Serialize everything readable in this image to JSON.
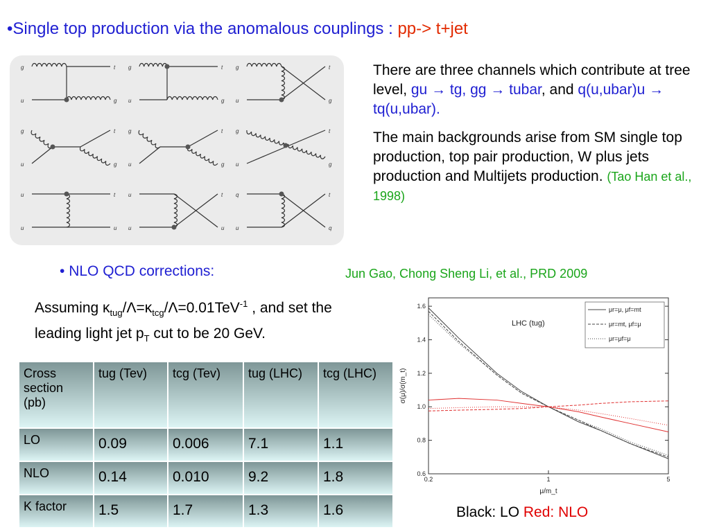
{
  "title": {
    "bullet": "•",
    "main": "Single top production via the anomalous couplings : ",
    "process": "pp-> t+jet"
  },
  "feynman": {
    "rows": [
      [
        {
          "tl": "g",
          "tr": "t",
          "bl": "u",
          "br": "g"
        },
        {
          "tl": "g",
          "tr": "t",
          "bl": "u",
          "br": "g"
        },
        {
          "tl": "g",
          "tr": "t",
          "bl": "u",
          "br": "g"
        }
      ],
      [
        {
          "tl": "g",
          "tr": "t",
          "bl": "u",
          "br": "g"
        },
        {
          "tl": "g",
          "tr": "t",
          "bl": "u",
          "br": "g"
        },
        {
          "tl": "g",
          "tr": "t",
          "bl": "u",
          "br": "g"
        }
      ],
      [
        {
          "tl": "u",
          "tr": "t",
          "bl": "u",
          "br": "u"
        },
        {
          "tl": "u",
          "tr": "t",
          "bl": "u",
          "br": "u"
        },
        {
          "tl": "q",
          "tr": "t",
          "bl": "u",
          "br": "q"
        }
      ]
    ]
  },
  "intro": {
    "p1_a": "There are three channels which contribute at tree level, ",
    "gu": "gu",
    "arrow": "→",
    "tg_gg": " tg, gg ",
    "tubar": "tubar",
    "and": ", and ",
    "q_process": "q(u,ubar)u",
    "tq_result": " tq(u,ubar).",
    "p2": "The main backgrounds arise from SM single top production, top pair production, W plus jets production and Multijets production. ",
    "citation": "(Tao Han et al., 1998)"
  },
  "nlo": {
    "bullet": "•",
    "label": "NLO QCD corrections:",
    "reference": "Jun Gao, Chong Sheng Li, et al., PRD 2009"
  },
  "assumption": {
    "t1": "Assuming κ",
    "s1": "tug",
    "t2": "/Λ=κ",
    "s2": "tcg",
    "t3": "/Λ=0.01TeV",
    "sup1": "-1",
    "t4": " , and set the leading light jet p",
    "s3": "T",
    "t5": " cut to be 20 GeV."
  },
  "table": {
    "headers": [
      "Cross section (pb)",
      "tug (Tev)",
      "tcg (Tev)",
      "tug (LHC)",
      "tcg (LHC)"
    ],
    "rows": [
      {
        "label": "LO",
        "values": [
          "0.09",
          "0.006",
          "7.1",
          "1.1"
        ]
      },
      {
        "label": "NLO",
        "values": [
          "0.14",
          "0.010",
          "9.2",
          "1.8"
        ]
      },
      {
        "label": "K factor",
        "values": [
          "1.5",
          "1.7",
          "1.3",
          "1.6"
        ]
      }
    ]
  },
  "caption": {
    "black": "Black: LO ",
    "red": " Red: NLO"
  },
  "chart_data": {
    "type": "line",
    "annotation": "LHC (tug)",
    "xscale": "log",
    "xlim": [
      0.2,
      5
    ],
    "ylim": [
      0.6,
      1.65
    ],
    "xticks": [
      "0.2",
      "1",
      "5"
    ],
    "yticks": [
      "0.6",
      "0.8",
      "1.0",
      "1.2",
      "1.4",
      "1.6"
    ],
    "xlabel": "μ/m_t",
    "ylabel": "σ(μ)/σ(m_t)",
    "legend_position": "top-right",
    "legend": [
      "μr=μ, μf=mt",
      "μr=mt, μf=μ",
      "μr=μf=μ"
    ],
    "x": [
      0.2,
      0.3,
      0.5,
      0.7,
      1,
      1.5,
      2,
      3,
      5
    ],
    "series": [
      {
        "group": "LO",
        "color": "#444444",
        "dash": "solid",
        "values": [
          1.59,
          1.41,
          1.2,
          1.09,
          1.0,
          0.91,
          0.86,
          0.78,
          0.69
        ]
      },
      {
        "group": "LO",
        "color": "#444444",
        "dash": "dashed",
        "values": [
          1.57,
          1.39,
          1.19,
          1.08,
          1.0,
          0.92,
          0.86,
          0.78,
          0.7
        ]
      },
      {
        "group": "LO",
        "color": "#444444",
        "dash": "dotted",
        "values": [
          1.55,
          1.38,
          1.19,
          1.08,
          1.0,
          0.92,
          0.87,
          0.79,
          0.71
        ]
      },
      {
        "group": "NLO",
        "color": "#e03030",
        "dash": "solid",
        "values": [
          1.04,
          1.05,
          1.04,
          1.02,
          1.0,
          0.97,
          0.94,
          0.9,
          0.85
        ]
      },
      {
        "group": "NLO",
        "color": "#e03030",
        "dash": "dashed",
        "values": [
          0.975,
          0.98,
          0.985,
          0.99,
          1.0,
          1.01,
          1.02,
          1.03,
          1.035
        ]
      },
      {
        "group": "NLO",
        "color": "#e03030",
        "dash": "dotted",
        "values": [
          0.99,
          0.995,
          1.0,
          1.0,
          1.0,
          0.98,
          0.96,
          0.93,
          0.89
        ]
      }
    ]
  }
}
